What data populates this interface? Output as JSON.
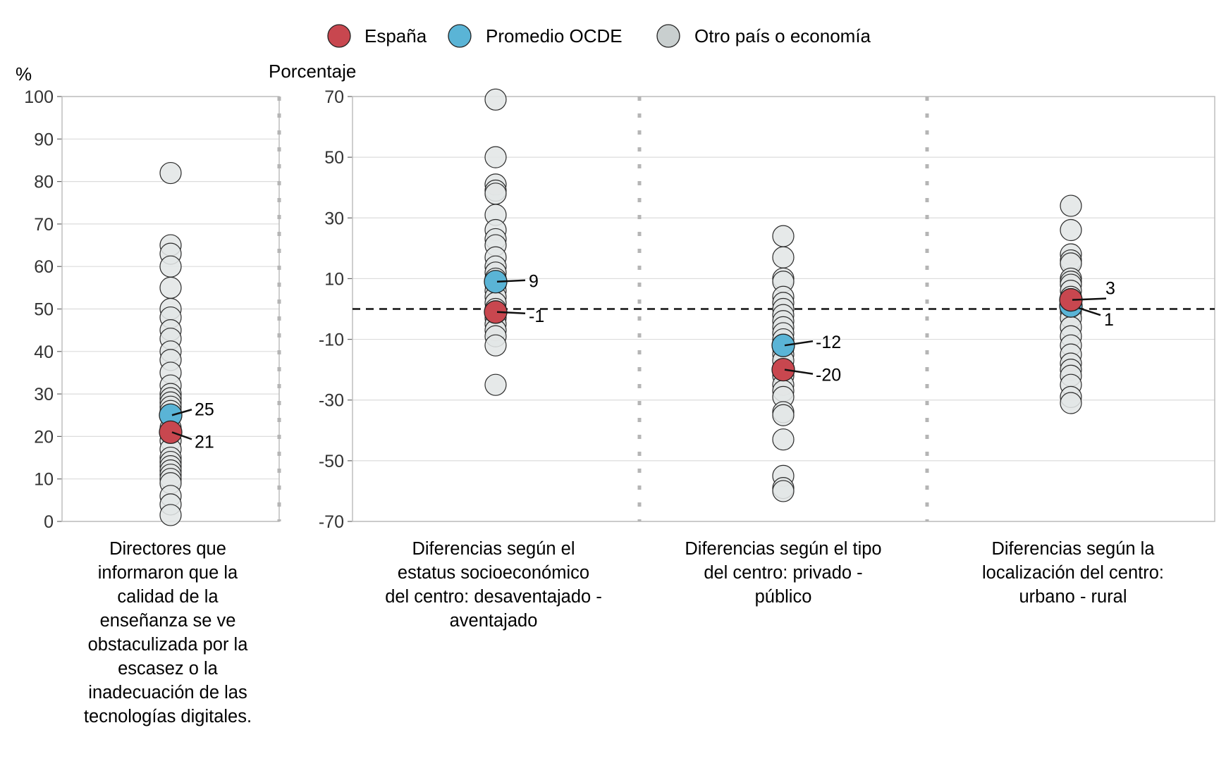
{
  "legend": [
    {
      "label": "España",
      "color": "#c8474f"
    },
    {
      "label": "Promedio OCDE",
      "color": "#5ab4d6"
    },
    {
      "label": "Otro país o economía",
      "color": "#c9cfcf"
    }
  ],
  "chart_data": [
    {
      "type": "scatter",
      "ylabel": "%",
      "ylim": [
        0,
        100
      ],
      "yticks": [
        0,
        10,
        20,
        30,
        40,
        50,
        60,
        70,
        80,
        90,
        100
      ],
      "grid": true,
      "categories": [
        "Directores que informaron que la calidad de la enseñanza se ve obstaculizada por la escasez o la inadecuación de las tecnologías digitales."
      ],
      "series": [
        {
          "name": "Otro país o economía",
          "values": [
            [
              82,
              65,
              63,
              60,
              55,
              50,
              48,
              45,
              43,
              40,
              38,
              35,
              32,
              30,
              29,
              28,
              27,
              26,
              22,
              19,
              17,
              15,
              14,
              13,
              12,
              11,
              10,
              9,
              6,
              4,
              1.5
            ]
          ]
        },
        {
          "name": "Promedio OCDE",
          "values": [
            25
          ]
        },
        {
          "name": "España",
          "values": [
            21
          ]
        }
      ],
      "labels": {
        "Promedio OCDE": [
          "25"
        ],
        "España": [
          "21"
        ]
      }
    },
    {
      "type": "scatter",
      "ylabel": "Porcentaje",
      "ylim": [
        -70,
        70
      ],
      "yticks": [
        -70,
        -50,
        -30,
        -10,
        10,
        30,
        50,
        70
      ],
      "reference_line": 0,
      "grid": true,
      "categories": [
        "Diferencias según el estatus socioeconómico del centro: desaventajado - aventajado",
        "Diferencias según el tipo del centro: privado - público",
        "Diferencias según la localización del centro: urbano - rural"
      ],
      "series": [
        {
          "name": "Otro país o economía",
          "values": [
            [
              69,
              50,
              41,
              39,
              38,
              31,
              26,
              23,
              21,
              17,
              14,
              12,
              10,
              8,
              6,
              4,
              2,
              0,
              -2,
              -3,
              -5,
              -7,
              -9,
              -12,
              -25
            ],
            [
              24,
              17,
              10,
              9,
              4,
              2,
              0,
              -2,
              -4,
              -6,
              -8,
              -10,
              -13,
              -15,
              -17,
              -22,
              -25,
              -27,
              -29,
              -34,
              -35,
              -43,
              -55,
              -59,
              -60
            ],
            [
              34,
              26,
              18,
              16,
              15,
              10,
              9,
              8,
              6,
              4,
              2,
              0,
              -1,
              -3,
              -6,
              -9,
              -12,
              -15,
              -18,
              -20,
              -22,
              -25,
              -29,
              -31
            ]
          ]
        },
        {
          "name": "Promedio OCDE",
          "values": [
            9,
            -12,
            1
          ]
        },
        {
          "name": "España",
          "values": [
            -1,
            -20,
            3
          ]
        }
      ],
      "labels": {
        "Promedio OCDE": [
          "9",
          "-12",
          "1"
        ],
        "España": [
          "-1",
          "-20",
          "3"
        ]
      }
    }
  ]
}
